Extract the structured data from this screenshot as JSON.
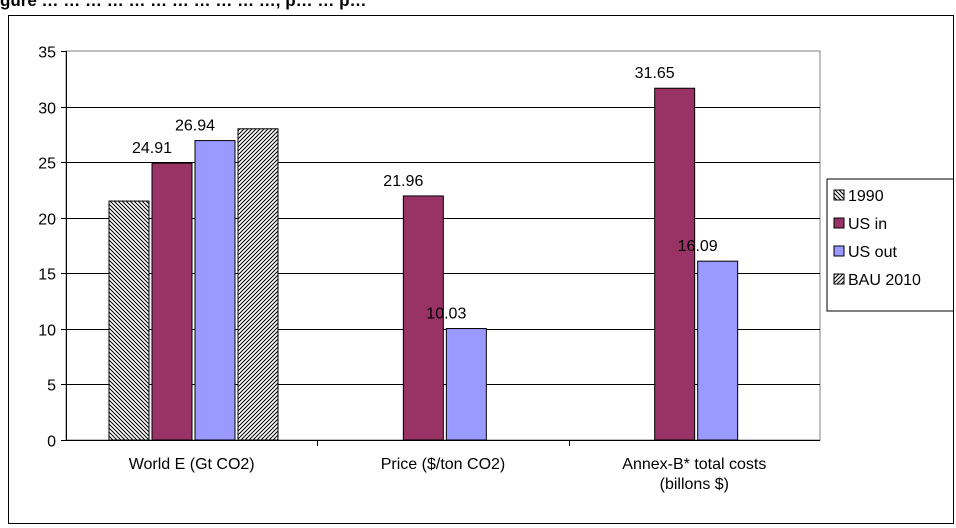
{
  "header": {
    "caption": "gure … … … … … … … … … … …, p… … p…"
  },
  "chart_data": {
    "type": "bar",
    "categories": [
      "World E (Gt CO2)",
      "Price ($/ton CO2)",
      "Annex-B* total costs (billons $)"
    ],
    "category_lines": [
      [
        "World E (Gt CO2)"
      ],
      [
        "Price ($/ton CO2)"
      ],
      [
        "Annex-B* total costs",
        "(billons $)"
      ]
    ],
    "series": [
      {
        "name": "1990",
        "values": [
          21.5,
          null,
          null
        ],
        "fill": "#ffffff",
        "pattern": "diagonal-down"
      },
      {
        "name": "US in",
        "values": [
          24.91,
          21.96,
          31.65
        ],
        "fill": "#993366",
        "pattern": "solid"
      },
      {
        "name": "US out",
        "values": [
          26.94,
          10.03,
          16.09
        ],
        "fill": "#9999ff",
        "pattern": "solid"
      },
      {
        "name": "BAU 2010",
        "values": [
          28.0,
          null,
          null
        ],
        "fill": "#ffffff",
        "pattern": "diagonal-up"
      }
    ],
    "data_labels": [
      {
        "series": 1,
        "category": 0,
        "text": "24.91"
      },
      {
        "series": 2,
        "category": 0,
        "text": "26.94"
      },
      {
        "series": 1,
        "category": 1,
        "text": "21.96"
      },
      {
        "series": 2,
        "category": 1,
        "text": "10.03"
      },
      {
        "series": 1,
        "category": 2,
        "text": "31.65"
      },
      {
        "series": 2,
        "category": 2,
        "text": "16.09"
      }
    ],
    "ylim": [
      0,
      35
    ],
    "yticks": [
      0,
      5,
      10,
      15,
      20,
      25,
      30,
      35
    ],
    "grid": true,
    "legend_position": "right",
    "title": "",
    "xlabel": "",
    "ylabel": ""
  }
}
